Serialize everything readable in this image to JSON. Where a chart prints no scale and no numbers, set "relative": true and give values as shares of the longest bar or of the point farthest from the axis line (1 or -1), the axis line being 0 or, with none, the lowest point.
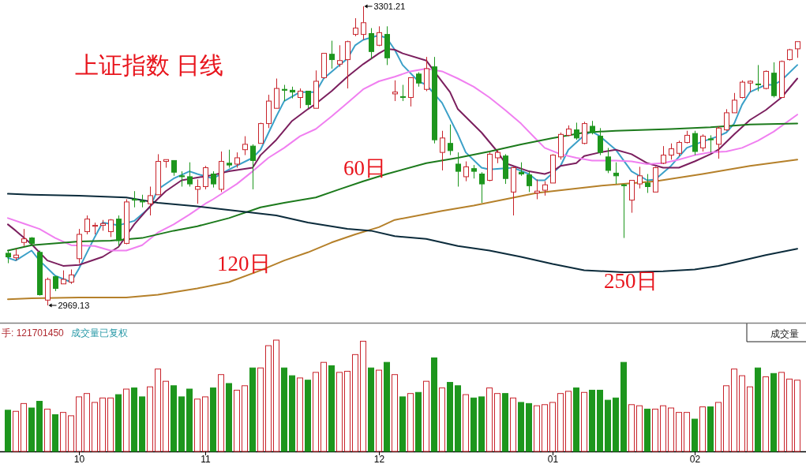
{
  "chart_data": [
    {
      "type": "candlestick",
      "title": "上证指数 日线",
      "ohlc": [
        [
          3027,
          3030,
          3016,
          3023
        ],
        [
          3022,
          3032,
          3019,
          3025
        ],
        [
          3039,
          3054,
          3035,
          3043
        ],
        [
          3044,
          3045,
          3035,
          3038
        ],
        [
          3028,
          3030,
          2980,
          2981
        ],
        [
          2975,
          3000,
          2969.13,
          2998
        ],
        [
          3001,
          3002,
          2985,
          2988
        ],
        [
          2993,
          3008,
          2993,
          2998
        ],
        [
          2995,
          3009,
          2993,
          3003
        ],
        [
          3021,
          3054,
          3016,
          3048
        ],
        [
          3051,
          3069,
          3048,
          3065
        ],
        [
          3057,
          3061,
          3048,
          3058
        ],
        [
          3058,
          3064,
          3052,
          3060
        ],
        [
          3051,
          3065,
          3045,
          3064
        ],
        [
          3065,
          3069,
          3035,
          3041
        ],
        [
          3038,
          3087,
          3037,
          3084
        ],
        [
          3087,
          3096,
          3078,
          3086
        ],
        [
          3085,
          3092,
          3078,
          3084
        ],
        [
          3082,
          3101,
          3069,
          3091
        ],
        [
          3092,
          3137,
          3092,
          3129
        ],
        [
          3129,
          3131,
          3122,
          3131
        ],
        [
          3130,
          3130,
          3113,
          3117
        ],
        [
          3113,
          3118,
          3101,
          3112
        ],
        [
          3112,
          3128,
          3101,
          3104
        ],
        [
          3098,
          3109,
          3082,
          3101
        ],
        [
          3101,
          3124,
          3098,
          3122
        ],
        [
          3115,
          3118,
          3100,
          3104
        ],
        [
          3098,
          3140,
          3095,
          3129
        ],
        [
          3127,
          3142,
          3122,
          3125
        ],
        [
          3126,
          3139,
          3122,
          3133
        ],
        [
          3142,
          3157,
          3136,
          3148
        ],
        [
          3146,
          3148,
          3098,
          3130
        ],
        [
          3149,
          3172,
          3149,
          3171
        ],
        [
          3171,
          3203,
          3166,
          3196
        ],
        [
          3188,
          3221,
          3188,
          3210
        ],
        [
          3209,
          3214,
          3196,
          3208
        ],
        [
          3208,
          3212,
          3199,
          3206
        ],
        [
          3200,
          3210,
          3188,
          3207
        ],
        [
          3207,
          3207,
          3188,
          3192
        ],
        [
          3188,
          3230,
          3188,
          3218
        ],
        [
          3222,
          3249,
          3221,
          3249
        ],
        [
          3248,
          3263,
          3232,
          3242
        ],
        [
          3237,
          3258,
          3234,
          3241
        ],
        [
          3242,
          3263,
          3210,
          3262
        ],
        [
          3270,
          3288,
          3268,
          3277
        ],
        [
          3270,
          3301.21,
          3264,
          3283
        ],
        [
          3271,
          3277,
          3243,
          3251
        ],
        [
          3258,
          3279,
          3257,
          3272
        ],
        [
          3270,
          3279,
          3236,
          3244
        ],
        [
          3204,
          3219,
          3196,
          3206
        ],
        [
          3201,
          3214,
          3196,
          3200
        ],
        [
          3200,
          3222,
          3190,
          3222
        ],
        [
          3226,
          3228,
          3212,
          3216
        ],
        [
          3209,
          3245,
          3207,
          3232
        ],
        [
          3234,
          3245,
          3149,
          3153
        ],
        [
          3139,
          3163,
          3119,
          3155
        ],
        [
          3149,
          3170,
          3136,
          3141
        ],
        [
          3126,
          3139,
          3101,
          3118
        ],
        [
          3112,
          3129,
          3107,
          3123
        ],
        [
          3121,
          3125,
          3110,
          3118
        ],
        [
          3115,
          3117,
          3083,
          3104
        ],
        [
          3108,
          3139,
          3107,
          3137
        ],
        [
          3133,
          3142,
          3127,
          3139
        ],
        [
          3135,
          3137,
          3104,
          3110
        ],
        [
          3095,
          3123,
          3069,
          3122
        ],
        [
          3117,
          3128,
          3113,
          3115
        ],
        [
          3114,
          3118,
          3095,
          3102
        ],
        [
          3094,
          3109,
          3087,
          3096
        ],
        [
          3097,
          3107,
          3091,
          3103
        ],
        [
          3105,
          3137,
          3105,
          3136
        ],
        [
          3134,
          3161,
          3131,
          3159
        ],
        [
          3158,
          3169,
          3157,
          3165
        ],
        [
          3164,
          3172,
          3153,
          3155
        ],
        [
          3149,
          3173,
          3148,
          3171
        ],
        [
          3168,
          3174,
          3159,
          3161
        ],
        [
          3157,
          3166,
          3136,
          3139
        ],
        [
          3134,
          3144,
          3116,
          3119
        ],
        [
          3116,
          3128,
          3104,
          3113
        ],
        [
          3103,
          3104,
          3044,
          3102
        ],
        [
          3086,
          3108,
          3072,
          3108
        ],
        [
          3104,
          3123,
          3099,
          3113
        ],
        [
          3105,
          3115,
          3094,
          3101
        ],
        [
          3095,
          3123,
          3095,
          3122
        ],
        [
          3127,
          3146,
          3126,
          3136
        ],
        [
          3136,
          3149,
          3131,
          3143
        ],
        [
          3138,
          3152,
          3135,
          3150
        ],
        [
          3150,
          3163,
          3149,
          3158
        ],
        [
          3160,
          3163,
          3136,
          3140
        ],
        [
          3144,
          3159,
          3140,
          3157
        ],
        [
          3154,
          3158,
          3139,
          3153
        ],
        [
          3148,
          3168,
          3132,
          3166
        ],
        [
          3164,
          3187,
          3163,
          3183
        ],
        [
          3183,
          3205,
          3183,
          3197
        ],
        [
          3200,
          3219,
          3199,
          3217
        ],
        [
          3216,
          3219,
          3206,
          3218
        ],
        [
          3215,
          3236,
          3207,
          3214
        ],
        [
          3210,
          3230,
          3209,
          3229
        ],
        [
          3227,
          3239,
          3200,
          3202
        ],
        [
          3200,
          3241,
          3200,
          3240
        ],
        [
          3242,
          3254,
          3241,
          3253
        ],
        [
          3254,
          3262,
          3244,
          3262
        ]
      ],
      "series": [
        {
          "type": "line",
          "color": "#3ba0c8",
          "values": [
            3022,
            3019,
            null,
            3030,
            3019,
            null,
            3002,
            null,
            2995,
            3010,
            null,
            3045,
            3061,
            null,
            3058,
            null,
            3063,
            null,
            3078,
            3098,
            null,
            3110,
            null,
            3118,
            3115,
            null,
            3110,
            null,
            3120,
            null,
            null,
            3133,
            3142,
            null,
            3179,
            3196,
            null,
            3206,
            null,
            3206,
            3221,
            null,
            3236,
            3243,
            3258,
            3264,
            null,
            3269,
            3266,
            3253,
            3236,
            null,
            3218,
            3214,
            null,
            3194,
            null,
            3159,
            3139,
            null,
            3122,
            3120,
            null,
            null,
            3122,
            null,
            3115,
            3108,
            3108,
            null,
            3124,
            3142,
            null,
            3158,
            3162,
            3157,
            null,
            3142,
            3130,
            3118,
            null,
            3108,
            3109,
            null,
            3124,
            null,
            3144,
            null,
            3151,
            null,
            3157,
            3161,
            3171,
            3192,
            3206,
            null,
            3214,
            3214,
            3219,
            null,
            3236
          ]
        },
        {
          "type": "line",
          "color": "#7b1f5e",
          "values": [
            3059,
            3052,
            null,
            3037,
            null,
            3019,
            null,
            3013,
            null,
            3014,
            null,
            null,
            3023,
            null,
            3034,
            null,
            3059,
            null,
            3079,
            null,
            3096,
            null,
            3108,
            null,
            3111,
            null,
            3114,
            null,
            3118,
            null,
            null,
            3122,
            3136,
            null,
            3153,
            null,
            3174,
            null,
            3187,
            3193,
            null,
            3207,
            null,
            3223,
            null,
            3237,
            null,
            3249,
            3254,
            3253,
            3249,
            null,
            null,
            3241,
            3229,
            null,
            3206,
            3187,
            null,
            null,
            3161,
            null,
            3140,
            3127,
            null,
            null,
            3118,
            null,
            3115,
            3118,
            3124,
            null,
            3127,
            3135,
            null,
            3139,
            null,
            3142,
            null,
            3137,
            null,
            3127,
            null,
            3122,
            null,
            3122,
            null,
            3129,
            null,
            3137,
            3142,
            null,
            3159,
            null,
            3175,
            null,
            3186,
            null,
            3200,
            null,
            3221
          ]
        },
        {
          "type": "line",
          "color": "#f07ff0",
          "values": [
            3066,
            null,
            3060,
            null,
            3054,
            null,
            3044,
            null,
            3036,
            null,
            null,
            3035,
            null,
            3030,
            null,
            3030,
            null,
            3036,
            null,
            3050,
            null,
            3059,
            null,
            3070,
            null,
            3082,
            3087,
            null,
            null,
            3104,
            null,
            3118,
            null,
            3133,
            null,
            3144,
            null,
            3157,
            null,
            3165,
            null,
            3179,
            null,
            3194,
            null,
            3209,
            null,
            3218,
            null,
            3223,
            null,
            3229,
            null,
            3232,
            null,
            3229,
            null,
            3221,
            null,
            3212,
            null,
            3200,
            null,
            3186,
            null,
            3171,
            null,
            3153,
            3144,
            null,
            3137,
            null,
            3133,
            null,
            3130,
            null,
            null,
            3130,
            null,
            3129,
            null,
            3126,
            null,
            3127,
            null,
            3131,
            null,
            3136,
            null,
            3139,
            null,
            3140,
            null,
            3144,
            null,
            3152,
            null,
            3162,
            null,
            null,
            3181
          ]
        },
        {
          "type": "line",
          "color": "#1c7a1c",
          "values": [
            3030,
            null,
            null,
            3036,
            null,
            null,
            null,
            null,
            null,
            3040,
            null,
            null,
            null,
            3041,
            null,
            null,
            null,
            3044,
            null,
            null,
            null,
            3052,
            null,
            null,
            3057,
            null,
            null,
            null,
            3066,
            null,
            null,
            null,
            3078,
            null,
            null,
            3083,
            null,
            null,
            null,
            3089,
            null,
            null,
            3098,
            null,
            null,
            3107,
            null,
            null,
            3115,
            null,
            null,
            null,
            null,
            3127,
            null,
            null,
            null,
            3133,
            null,
            null,
            null,
            3140,
            null,
            null,
            null,
            3148,
            null,
            null,
            null,
            3155,
            null,
            null,
            null,
            3161,
            null,
            null,
            null,
            3163,
            null,
            null,
            null,
            null,
            null,
            null,
            3165,
            null,
            null,
            null,
            null,
            3167,
            null,
            null,
            null,
            null,
            3170,
            null,
            null,
            null,
            null,
            null,
            3171
          ]
        },
        {
          "type": "line",
          "color": "#b5802a",
          "values": [
            2976,
            null,
            null,
            2977,
            null,
            null,
            null,
            null,
            null,
            2978,
            null,
            null,
            null,
            null,
            null,
            2978,
            null,
            null,
            null,
            2981,
            null,
            null,
            null,
            null,
            2988,
            null,
            null,
            null,
            2995,
            null,
            null,
            null,
            3008,
            null,
            null,
            3019,
            null,
            null,
            3028,
            null,
            null,
            3039,
            null,
            null,
            3048,
            null,
            null,
            3056,
            null,
            3064,
            null,
            null,
            null,
            null,
            null,
            3074,
            null,
            null,
            null,
            3080,
            null,
            null,
            null,
            3087,
            null,
            null,
            null,
            3094,
            null,
            null,
            null,
            3098,
            null,
            null,
            null,
            3102,
            null,
            null,
            null,
            null,
            null,
            null,
            3107,
            null,
            null,
            null,
            null,
            null,
            3115,
            null,
            null,
            null,
            null,
            null,
            3124,
            null,
            null,
            null,
            null,
            null,
            3131
          ]
        },
        {
          "type": "line",
          "color": "#0b2b3b",
          "values": [
            3093,
            null,
            null,
            3092,
            null,
            null,
            null,
            null,
            null,
            3091,
            null,
            null,
            null,
            null,
            null,
            3089,
            null,
            null,
            null,
            3083,
            null,
            null,
            null,
            null,
            3079,
            null,
            null,
            null,
            null,
            3074,
            null,
            null,
            null,
            null,
            3069,
            null,
            null,
            null,
            3061,
            null,
            null,
            null,
            null,
            3054,
            null,
            null,
            3052,
            null,
            null,
            3046,
            null,
            null,
            null,
            3043,
            null,
            null,
            null,
            3035,
            null,
            null,
            null,
            3030,
            null,
            null,
            null,
            3023,
            null,
            null,
            null,
            3015,
            null,
            null,
            null,
            3008,
            null,
            null,
            null,
            null,
            3006,
            null,
            null,
            null,
            null,
            3007,
            null,
            null,
            null,
            3009,
            null,
            null,
            3013,
            null,
            3017,
            null,
            null,
            null,
            3025,
            null,
            null,
            null,
            3032
          ]
        }
      ],
      "annotations": [
        "60日",
        "120日",
        "250日",
        "3301.21",
        "2969.13"
      ]
    },
    {
      "type": "bar",
      "relative": true,
      "categories": [
        null,
        null,
        null,
        null,
        null,
        null,
        null,
        null,
        null,
        "10",
        null,
        null,
        null,
        null,
        null,
        null,
        null,
        null,
        null,
        null,
        null,
        null,
        null,
        null,
        null,
        "11",
        null,
        null,
        null,
        null,
        null,
        null,
        null,
        null,
        null,
        null,
        null,
        null,
        null,
        null,
        null,
        null,
        null,
        null,
        null,
        null,
        null,
        "12",
        null,
        null,
        null,
        null,
        null,
        null,
        null,
        null,
        null,
        null,
        null,
        null,
        null,
        null,
        null,
        null,
        null,
        null,
        null,
        null,
        null,
        "01",
        null,
        null,
        null,
        null,
        null,
        null,
        null,
        null,
        null,
        null,
        null,
        null,
        null,
        null,
        null,
        null,
        null,
        "02",
        null,
        null,
        null,
        null,
        null,
        null,
        null,
        null,
        null,
        null,
        null,
        null,
        null
      ],
      "values": [
        0.37,
        0.36,
        0.43,
        0.39,
        0.45,
        0.38,
        0.33,
        0.35,
        0.32,
        0.49,
        0.52,
        0.44,
        0.48,
        0.48,
        0.51,
        0.56,
        0.57,
        0.49,
        0.58,
        0.74,
        0.63,
        0.59,
        0.49,
        0.56,
        0.47,
        0.49,
        0.57,
        0.69,
        0.61,
        0.55,
        0.59,
        0.75,
        0.75,
        0.95,
        1,
        0.75,
        0.68,
        0.66,
        0.64,
        0.71,
        0.8,
        0.77,
        0.71,
        0.72,
        0.87,
        0.99,
        0.75,
        0.73,
        0.8,
        0.69,
        0.49,
        0.52,
        0.53,
        0.63,
        0.84,
        0.57,
        0.62,
        0.59,
        0.51,
        0.48,
        0.49,
        0.57,
        0.52,
        0.52,
        0.48,
        0.44,
        0.43,
        0.41,
        0.42,
        0.44,
        0.52,
        0.54,
        0.57,
        0.53,
        0.55,
        0.55,
        0.46,
        0.48,
        0.8,
        0.42,
        0.41,
        0.38,
        0.38,
        0.41,
        0.39,
        0.35,
        0.35,
        0.29,
        0.4,
        0.4,
        0.44,
        0.59,
        0.74,
        0.68,
        0.58,
        0.75,
        0.67,
        0.7,
        0.71,
        0.65,
        0.64
      ],
      "annotations": [
        "手: 121701450",
        "成交量已复权",
        "成交量"
      ]
    }
  ]
}
